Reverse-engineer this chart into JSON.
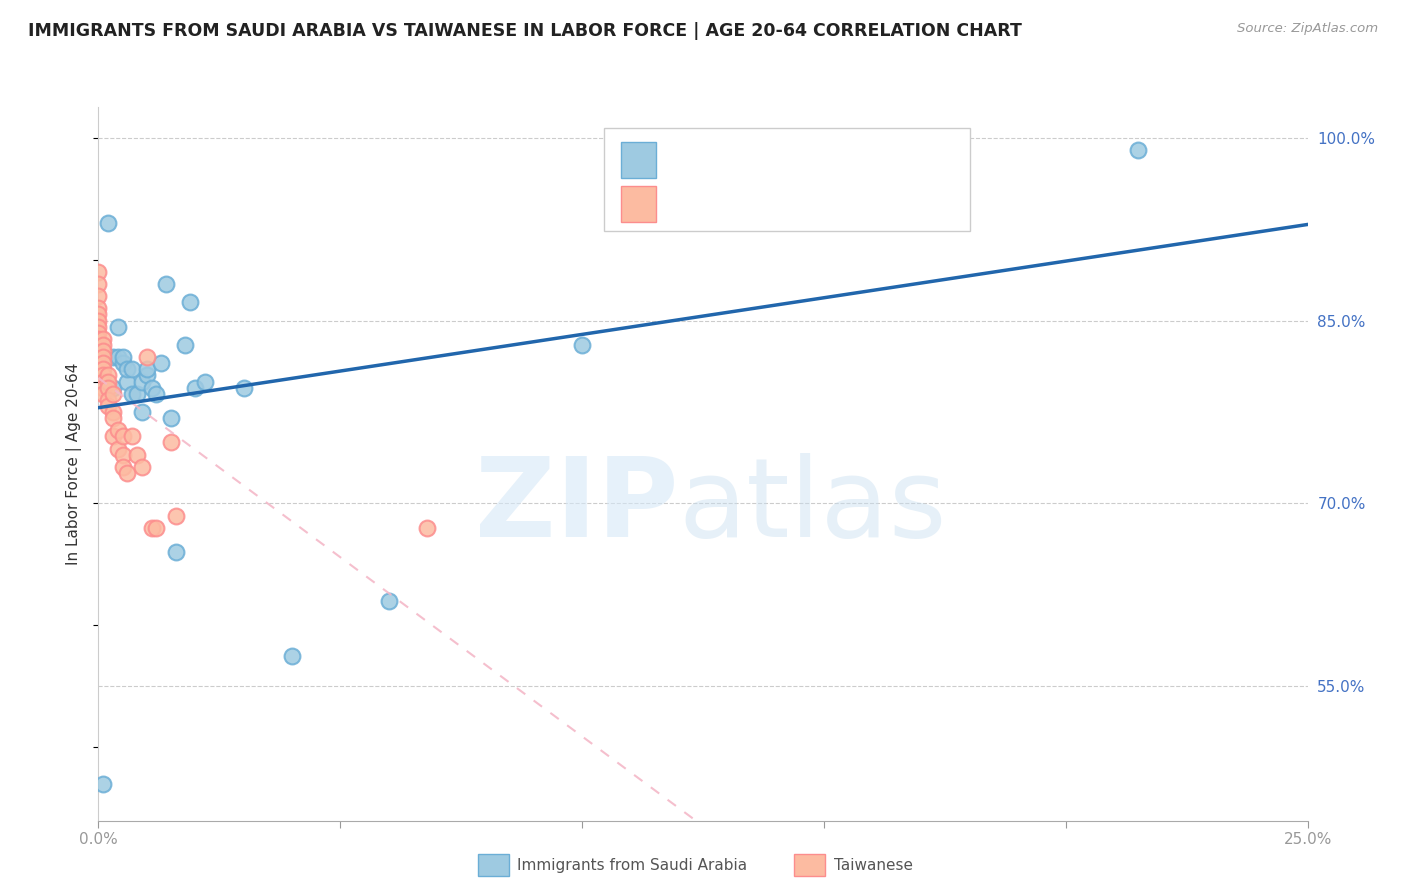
{
  "title": "IMMIGRANTS FROM SAUDI ARABIA VS TAIWANESE IN LABOR FORCE | AGE 20-64 CORRELATION CHART",
  "source": "Source: ZipAtlas.com",
  "xlabel_blue": "Immigrants from Saudi Arabia",
  "xlabel_pink": "Taiwanese",
  "ylabel": "In Labor Force | Age 20-64",
  "xlim": [
    0.0,
    0.25
  ],
  "ylim": [
    0.44,
    1.025
  ],
  "xticks": [
    0.0,
    0.05,
    0.1,
    0.15,
    0.2,
    0.25
  ],
  "xticklabels": [
    "0.0%",
    "",
    "",
    "",
    "",
    "25.0%"
  ],
  "yticks_right": [
    1.0,
    0.85,
    0.7,
    0.55
  ],
  "ytick_labels_right": [
    "100.0%",
    "85.0%",
    "70.0%",
    "55.0%"
  ],
  "blue_color": "#9ecae1",
  "pink_color": "#fcbba1",
  "blue_edge_color": "#6baed6",
  "pink_edge_color": "#fc8d8d",
  "trend_blue_color": "#2166ac",
  "trend_pink_color": "#f4b8c8",
  "watermark_zip": "ZIP",
  "watermark_atlas": "atlas",
  "blue_x": [
    0.001,
    0.001,
    0.002,
    0.003,
    0.003,
    0.004,
    0.004,
    0.005,
    0.005,
    0.006,
    0.006,
    0.007,
    0.007,
    0.008,
    0.009,
    0.009,
    0.01,
    0.01,
    0.011,
    0.012,
    0.013,
    0.014,
    0.015,
    0.016,
    0.018,
    0.019,
    0.02,
    0.022,
    0.03,
    0.04,
    0.06,
    0.1,
    0.215
  ],
  "blue_y": [
    0.8,
    0.47,
    0.93,
    0.82,
    0.795,
    0.845,
    0.82,
    0.815,
    0.82,
    0.8,
    0.81,
    0.81,
    0.79,
    0.79,
    0.775,
    0.8,
    0.805,
    0.81,
    0.795,
    0.79,
    0.815,
    0.88,
    0.77,
    0.66,
    0.83,
    0.865,
    0.795,
    0.8,
    0.795,
    0.575,
    0.62,
    0.83,
    0.99
  ],
  "pink_x": [
    0.0,
    0.0,
    0.0,
    0.0,
    0.0,
    0.0,
    0.0,
    0.0,
    0.0,
    0.001,
    0.001,
    0.001,
    0.001,
    0.001,
    0.001,
    0.001,
    0.001,
    0.001,
    0.001,
    0.002,
    0.002,
    0.002,
    0.002,
    0.002,
    0.003,
    0.003,
    0.003,
    0.003,
    0.004,
    0.004,
    0.005,
    0.005,
    0.005,
    0.006,
    0.007,
    0.008,
    0.009,
    0.01,
    0.011,
    0.012,
    0.015,
    0.016,
    0.068
  ],
  "pink_y": [
    0.89,
    0.88,
    0.87,
    0.86,
    0.855,
    0.85,
    0.845,
    0.84,
    0.835,
    0.835,
    0.83,
    0.825,
    0.82,
    0.815,
    0.81,
    0.805,
    0.8,
    0.795,
    0.79,
    0.805,
    0.8,
    0.795,
    0.785,
    0.78,
    0.79,
    0.775,
    0.77,
    0.755,
    0.76,
    0.745,
    0.755,
    0.74,
    0.73,
    0.725,
    0.755,
    0.74,
    0.73,
    0.82,
    0.68,
    0.68,
    0.75,
    0.69,
    0.68
  ]
}
